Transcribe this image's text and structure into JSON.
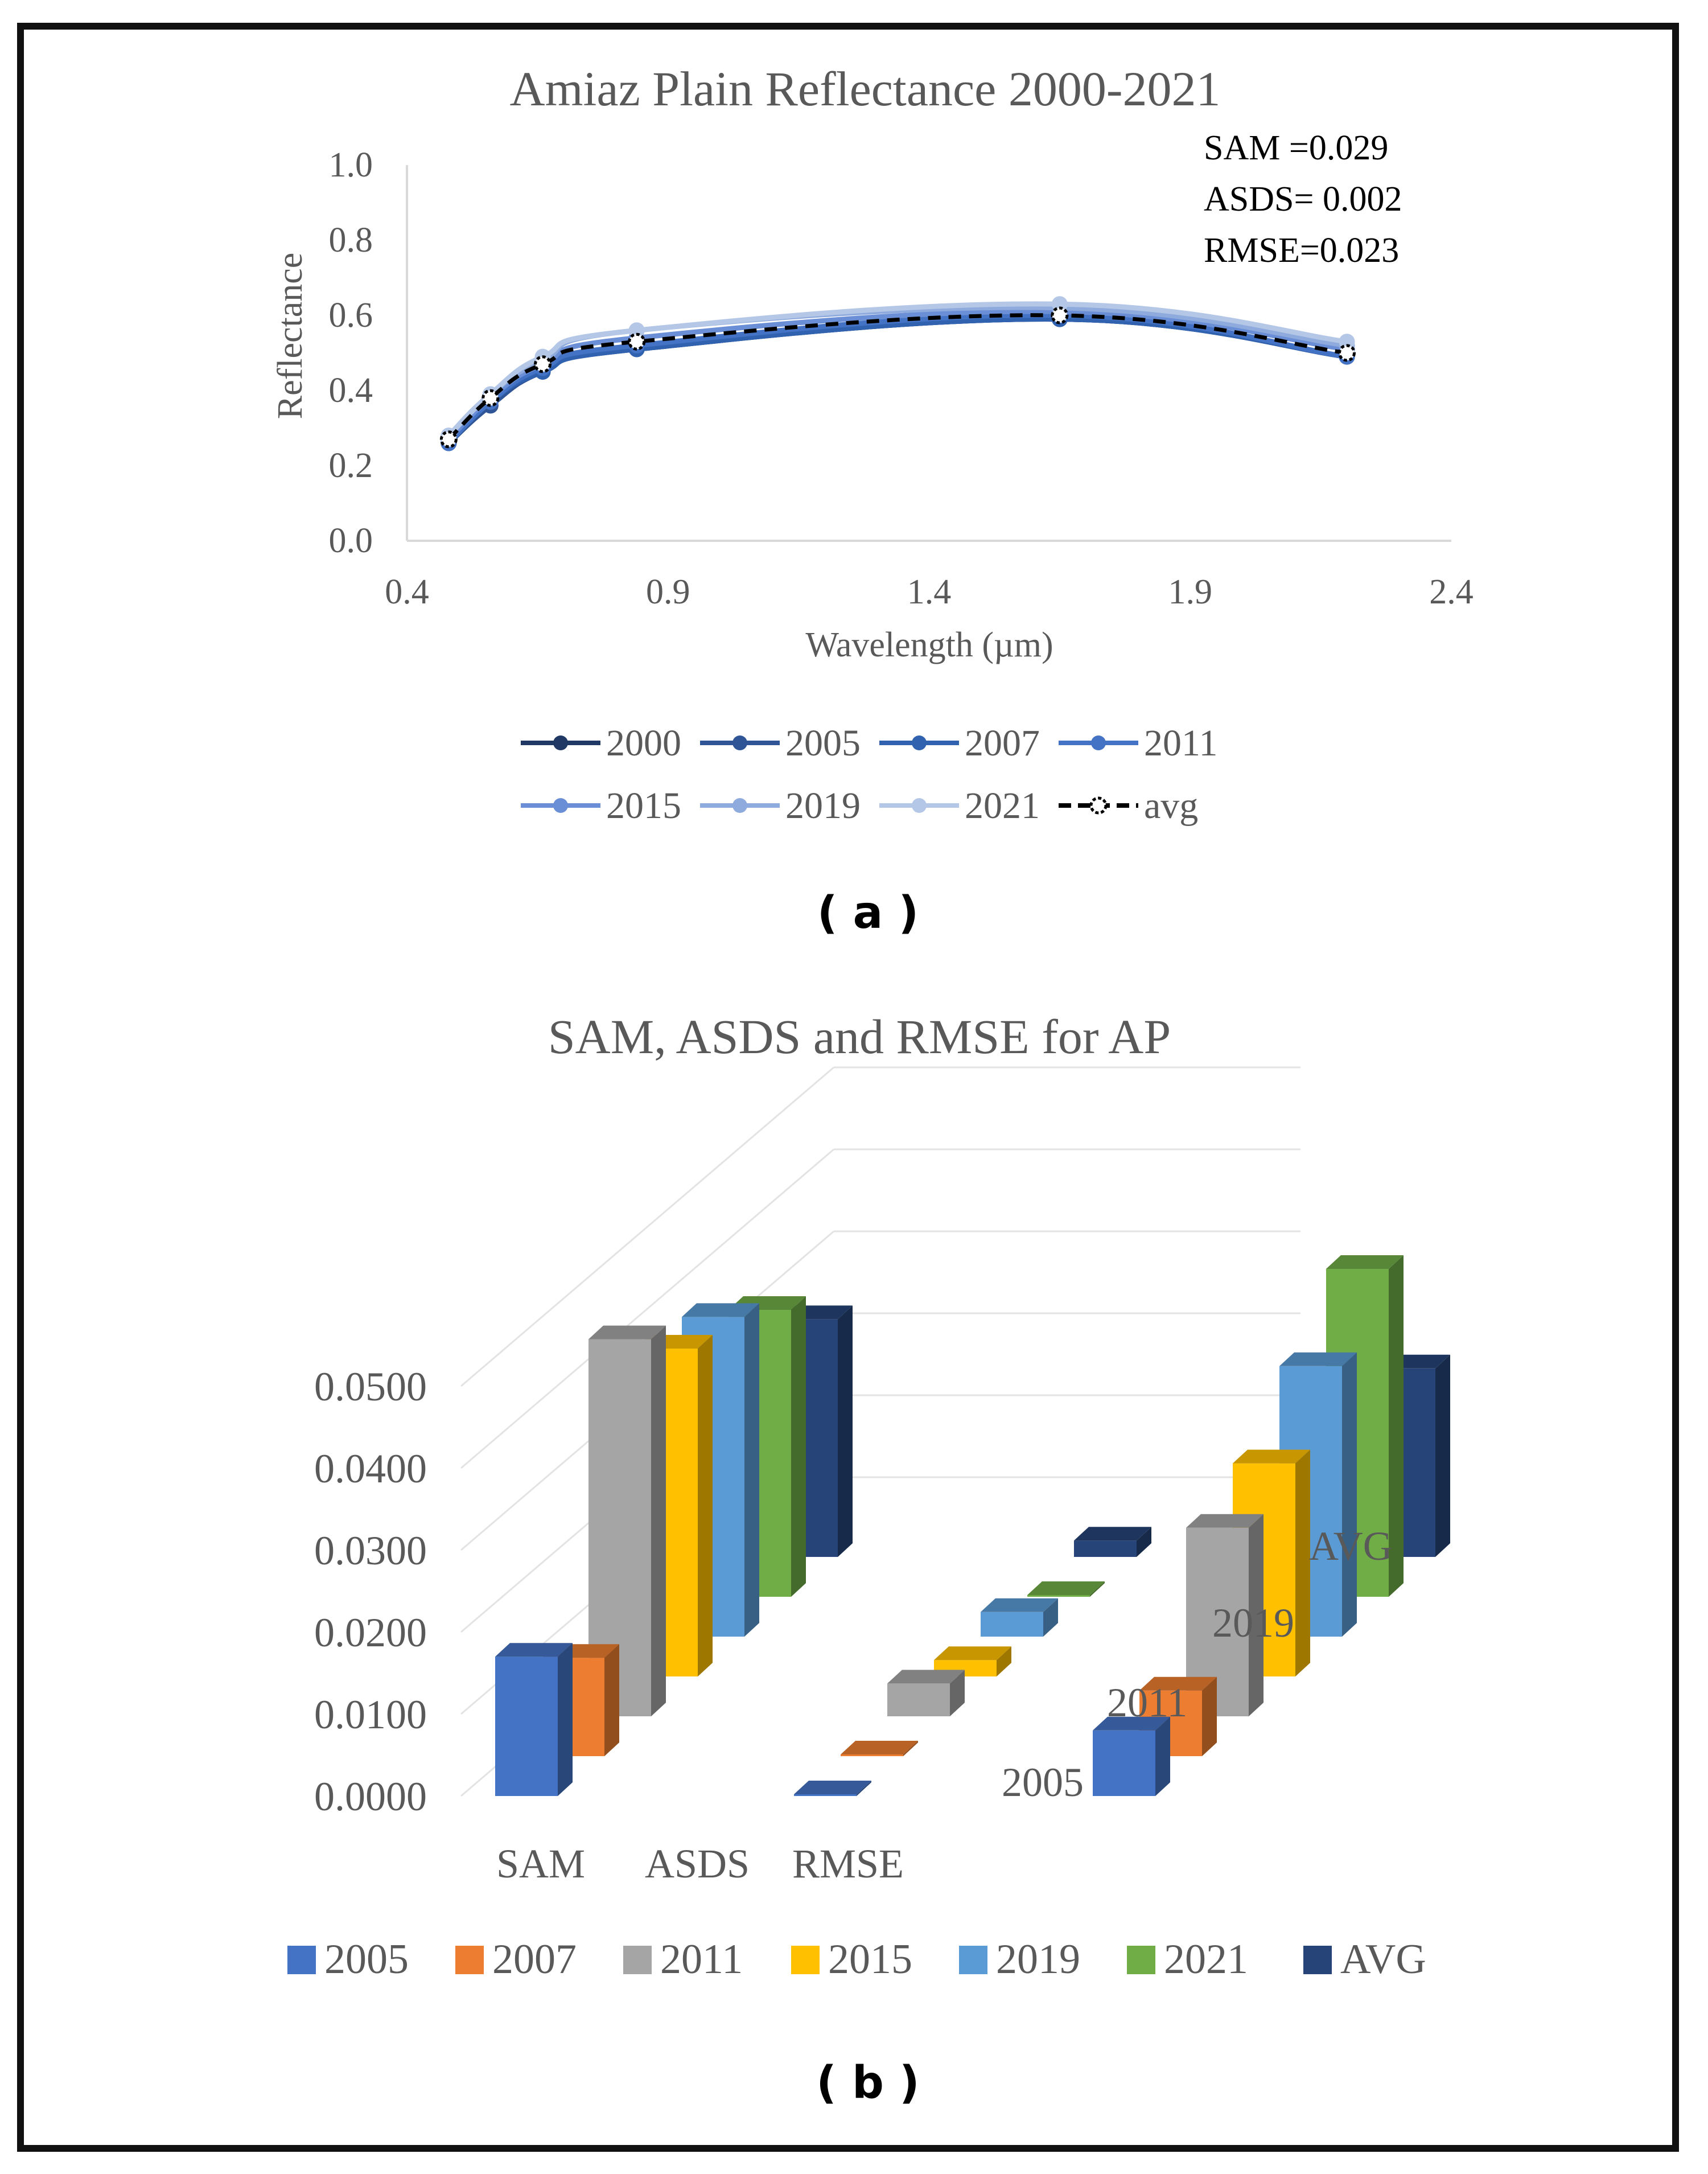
{
  "chart_data": [
    {
      "type": "line",
      "title": "Amiaz Plain Reflectance 2000-2021",
      "xlabel": "Wavelength (µm)",
      "ylabel": "Reflectance",
      "xlim": [
        0.4,
        2.4
      ],
      "ylim": [
        0.0,
        1.0
      ],
      "x_ticks": [
        "0.4",
        "0.9",
        "1.4",
        "1.9",
        "2.4"
      ],
      "y_ticks": [
        "0.0",
        "0.2",
        "0.4",
        "0.6",
        "0.8",
        "1.0"
      ],
      "x": [
        0.48,
        0.56,
        0.66,
        0.84,
        1.65,
        2.2
      ],
      "series": [
        {
          "name": "2000",
          "color": "#1f3864",
          "values": [
            0.26,
            0.36,
            0.45,
            0.51,
            0.59,
            0.49
          ]
        },
        {
          "name": "2005",
          "color": "#2f5597",
          "values": [
            0.26,
            0.36,
            0.45,
            0.51,
            0.59,
            0.49
          ]
        },
        {
          "name": "2007",
          "color": "#3162b0",
          "values": [
            0.26,
            0.37,
            0.45,
            0.51,
            0.59,
            0.49
          ]
        },
        {
          "name": "2011",
          "color": "#4472c4",
          "values": [
            0.26,
            0.37,
            0.46,
            0.52,
            0.6,
            0.49
          ]
        },
        {
          "name": "2015",
          "color": "#6b8fd6",
          "values": [
            0.27,
            0.38,
            0.47,
            0.54,
            0.61,
            0.51
          ]
        },
        {
          "name": "2019",
          "color": "#8faadc",
          "values": [
            0.28,
            0.39,
            0.48,
            0.56,
            0.62,
            0.52
          ]
        },
        {
          "name": "2021",
          "color": "#b4c7e7",
          "values": [
            0.28,
            0.39,
            0.49,
            0.56,
            0.63,
            0.53
          ]
        },
        {
          "name": "avg",
          "color": "#000000",
          "dashed": true,
          "values": [
            0.27,
            0.38,
            0.47,
            0.53,
            0.6,
            0.5
          ]
        }
      ],
      "annotations": [
        "SAM  =0.029",
        "ASDS= 0.002",
        "RMSE=0.023"
      ],
      "panel_label": "( a )"
    },
    {
      "type": "bar",
      "title": "SAM, ASDS and RMSE for AP",
      "categories": [
        "SAM",
        "ASDS",
        "RMSE"
      ],
      "y_ticks": [
        "0.0000",
        "0.0100",
        "0.0200",
        "0.0300",
        "0.0400",
        "0.0500"
      ],
      "ylim": [
        0.0,
        0.05
      ],
      "depth_labels": [
        "2005",
        "2011",
        "2019",
        "AVG"
      ],
      "series": [
        {
          "name": "2005",
          "color": "#4472c4",
          "values": [
            0.017,
            0.0002,
            0.008
          ]
        },
        {
          "name": "2007",
          "color": "#ed7d31",
          "values": [
            0.012,
            0.0002,
            0.008
          ]
        },
        {
          "name": "2011",
          "color": "#a5a5a5",
          "values": [
            0.046,
            0.004,
            0.023
          ]
        },
        {
          "name": "2015",
          "color": "#ffc000",
          "values": [
            0.04,
            0.002,
            0.026
          ]
        },
        {
          "name": "2019",
          "color": "#5b9bd5",
          "values": [
            0.039,
            0.003,
            0.033
          ]
        },
        {
          "name": "2021",
          "color": "#70ad47",
          "values": [
            0.035,
            0.0001,
            0.04
          ]
        },
        {
          "name": "AVG",
          "color": "#264478",
          "values": [
            0.029,
            0.002,
            0.023
          ]
        }
      ],
      "panel_label": "( b )"
    }
  ]
}
